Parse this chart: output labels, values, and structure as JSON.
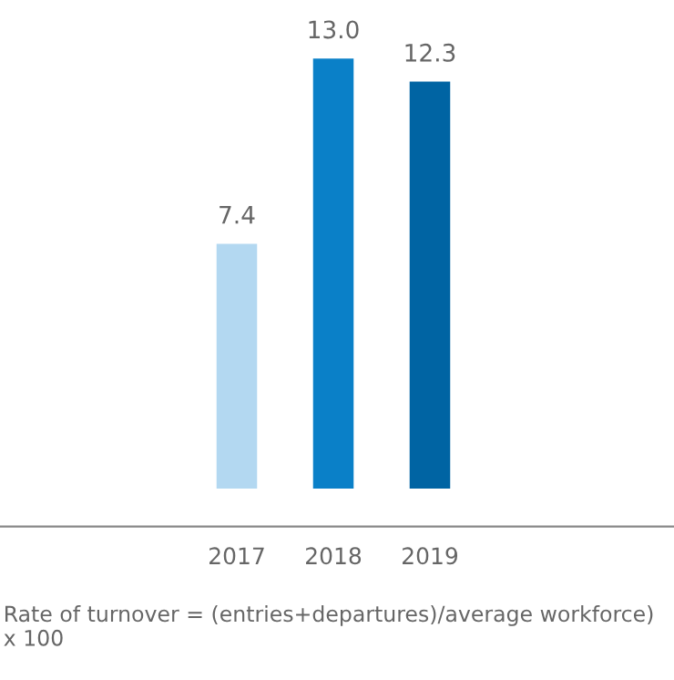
{
  "chart_data": {
    "type": "bar",
    "categories": [
      "2017",
      "2018",
      "2019"
    ],
    "values": [
      7.4,
      13.0,
      12.3
    ],
    "colors": [
      "#b3d8f1",
      "#0a80c8",
      "#0064a3"
    ],
    "value_labels": [
      "7.4",
      "13.0",
      "12.3"
    ],
    "grid": false,
    "legend": false,
    "annotations": [
      "Rate of turnover = (entries+departures)/average workforce) x 100"
    ]
  }
}
